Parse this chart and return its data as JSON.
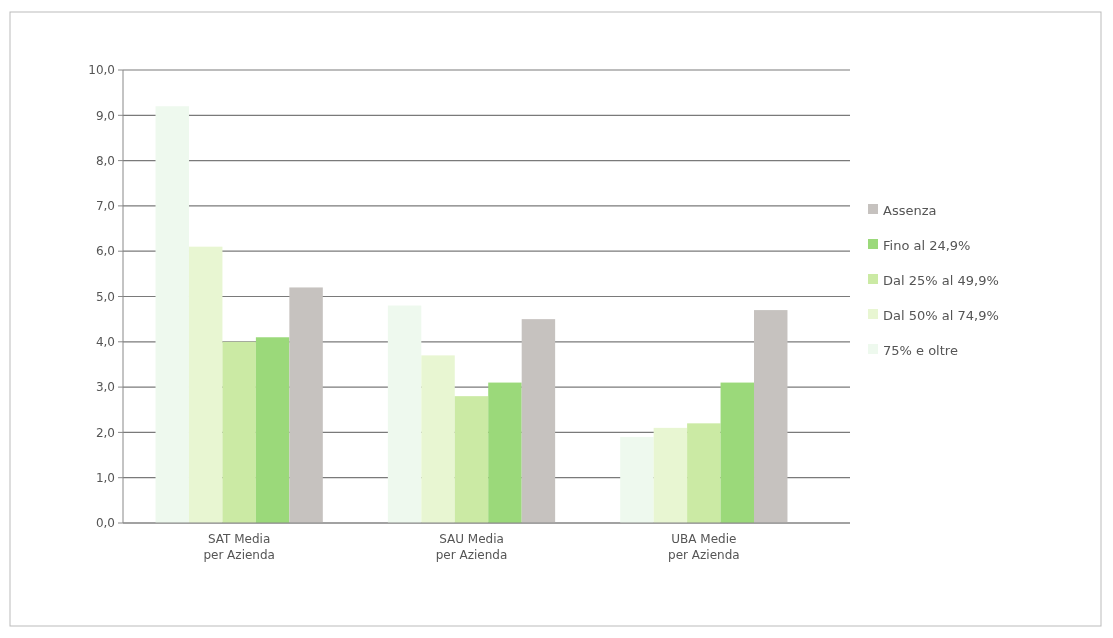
{
  "chart_data": {
    "type": "bar",
    "categories": [
      "SAT Media\nper Azienda",
      "SAU Media\nper Azienda",
      "UBA Medie\nper Azienda"
    ],
    "series": [
      {
        "name": "75% e oltre",
        "color": "#eef9ee",
        "values": [
          9.2,
          4.8,
          1.9
        ]
      },
      {
        "name": "Dal 50% al 74,9%",
        "color": "#e8f6d2",
        "values": [
          6.1,
          3.7,
          2.1
        ]
      },
      {
        "name": "Dal 25% al 49,9%",
        "color": "#cbeaa4",
        "values": [
          4.0,
          2.8,
          2.2
        ]
      },
      {
        "name": "Fino al 24,9%",
        "color": "#9bd97a",
        "values": [
          4.1,
          3.1,
          3.1
        ]
      },
      {
        "name": "Assenza",
        "color": "#c6c2bf",
        "values": [
          5.2,
          4.5,
          4.7
        ]
      }
    ],
    "ylim": [
      0,
      10
    ],
    "yticks": [
      {
        "value": 0,
        "label": "0,0"
      },
      {
        "value": 1,
        "label": "1,0"
      },
      {
        "value": 2,
        "label": "2,0"
      },
      {
        "value": 3,
        "label": "3,0"
      },
      {
        "value": 4,
        "label": "4,0"
      },
      {
        "value": 5,
        "label": "5,0"
      },
      {
        "value": 6,
        "label": "6,0"
      },
      {
        "value": 7,
        "label": "7,0"
      },
      {
        "value": 8,
        "label": "8,0"
      },
      {
        "value": 9,
        "label": "9,0"
      },
      {
        "value": 10,
        "label": "10,0"
      }
    ],
    "grid": "y",
    "legend": "right"
  }
}
